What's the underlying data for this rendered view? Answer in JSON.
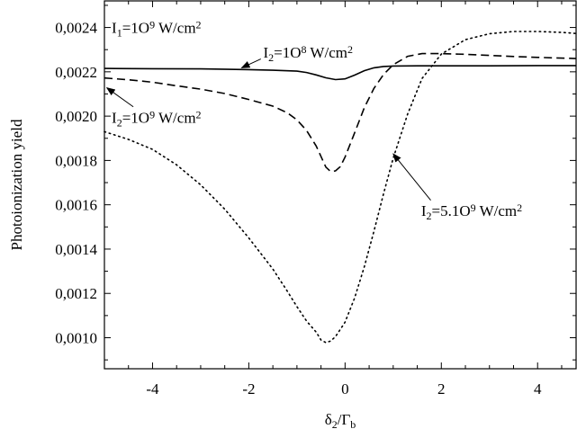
{
  "chart_data": {
    "type": "line",
    "xlabel": "δ2/Γb",
    "ylabel": "Photoionization yield",
    "xlim": [
      -5,
      4.8
    ],
    "ylim": [
      0.00086,
      0.00252
    ],
    "x_ticks": [
      -4,
      -2,
      0,
      2,
      4
    ],
    "x_tick_labels": [
      "-4",
      "-2",
      "0",
      "2",
      "4"
    ],
    "y_ticks": [
      0.001,
      0.0012,
      0.0014,
      0.0016,
      0.0018,
      0.002,
      0.0022,
      0.0024
    ],
    "y_tick_labels": [
      "0,0010",
      "0,0012",
      "0,0014",
      "0,0016",
      "0,0018",
      "0,0020",
      "0,0022",
      "0,0024"
    ],
    "grid": false,
    "series": [
      {
        "label": "I2=1O8 W/cm2",
        "style": "solid",
        "x": [
          -5,
          -4,
          -3,
          -2,
          -1.5,
          -1,
          -0.8,
          -0.6,
          -0.4,
          -0.2,
          0,
          0.2,
          0.4,
          0.6,
          0.8,
          1,
          1.5,
          2,
          3,
          4,
          4.8
        ],
        "y": [
          0.002215,
          0.002214,
          0.002213,
          0.00221,
          0.002207,
          0.002203,
          0.002197,
          0.002186,
          0.002173,
          0.002165,
          0.002168,
          0.002185,
          0.002205,
          0.002218,
          0.002224,
          0.002226,
          0.002227,
          0.002227,
          0.002227,
          0.002228,
          0.002228
        ]
      },
      {
        "label": "I2=1O9 W/cm2",
        "style": "dashed",
        "x": [
          -5,
          -4.5,
          -4,
          -3.5,
          -3,
          -2.5,
          -2,
          -1.5,
          -1.2,
          -1,
          -0.8,
          -0.6,
          -0.4,
          -0.3,
          -0.2,
          -0.1,
          0,
          0.2,
          0.4,
          0.6,
          0.8,
          1,
          1.3,
          1.6,
          2,
          2.5,
          3,
          3.5,
          4,
          4.8
        ],
        "y": [
          0.002172,
          0.002164,
          0.002153,
          0.002137,
          0.002122,
          0.002102,
          0.002075,
          0.002045,
          0.002015,
          0.001983,
          0.001935,
          0.001865,
          0.00177,
          0.00175,
          0.001753,
          0.001772,
          0.001815,
          0.001925,
          0.002038,
          0.002125,
          0.002188,
          0.002232,
          0.00227,
          0.002282,
          0.002282,
          0.002279,
          0.002274,
          0.002269,
          0.002265,
          0.00226
        ]
      },
      {
        "label": "I2=5.1O9 W/cm2",
        "style": "dotted",
        "x": [
          -5,
          -4.5,
          -4,
          -3.5,
          -3,
          -2.5,
          -2,
          -1.5,
          -1.2,
          -1,
          -0.8,
          -0.6,
          -0.5,
          -0.4,
          -0.3,
          -0.2,
          0,
          0.2,
          0.4,
          0.6,
          0.8,
          1,
          1.3,
          1.6,
          2,
          2.5,
          3,
          3.5,
          4,
          4.5,
          4.8
        ],
        "y": [
          0.00193,
          0.001895,
          0.00185,
          0.00178,
          0.00169,
          0.00158,
          0.00145,
          0.00131,
          0.00121,
          0.00114,
          0.001075,
          0.001025,
          0.00099,
          0.000978,
          0.000985,
          0.001005,
          0.00107,
          0.00118,
          0.00132,
          0.00148,
          0.00165,
          0.00181,
          0.00201,
          0.00217,
          0.00228,
          0.002345,
          0.002372,
          0.002382,
          0.002382,
          0.002378,
          0.002373
        ]
      }
    ],
    "annotations": [
      {
        "id": "ann-top-left",
        "parts": [
          [
            "I",
            "normal"
          ],
          [
            "1",
            "sub"
          ],
          [
            "=1O",
            "normal"
          ],
          [
            "9",
            "sup"
          ],
          [
            " W/cm",
            "normal"
          ],
          [
            "2",
            "sup"
          ]
        ],
        "x": -4.85,
        "y": 0.002375,
        "arrow": false
      },
      {
        "id": "ann-solid",
        "parts": [
          [
            "I",
            "normal"
          ],
          [
            "2",
            "sub"
          ],
          [
            "=1O",
            "normal"
          ],
          [
            "8",
            "sup"
          ],
          [
            " W/cm",
            "normal"
          ],
          [
            "2",
            "sup"
          ]
        ],
        "x": -1.7,
        "y": 0.002264,
        "arrow": true,
        "arrow_from": [
          -1.75,
          0.002258
        ],
        "arrow_to": [
          -2.15,
          0.002218
        ]
      },
      {
        "id": "ann-dashed",
        "parts": [
          [
            "I",
            "normal"
          ],
          [
            "2",
            "sub"
          ],
          [
            "=1O",
            "normal"
          ],
          [
            "9",
            "sup"
          ],
          [
            " W/cm",
            "normal"
          ],
          [
            "2",
            "sup"
          ]
        ],
        "x": -4.85,
        "y": 0.00197,
        "arrow": true,
        "arrow_from": [
          -4.4,
          0.002042
        ],
        "arrow_to": [
          -4.95,
          0.002128
        ]
      },
      {
        "id": "ann-dotted",
        "parts": [
          [
            "I",
            "normal"
          ],
          [
            "2",
            "sub"
          ],
          [
            "=5.1O",
            "normal"
          ],
          [
            "9",
            "sup"
          ],
          [
            " W/cm",
            "normal"
          ],
          [
            "2",
            "sup"
          ]
        ],
        "x": 1.58,
        "y": 0.00155,
        "arrow": true,
        "arrow_from": [
          1.78,
          0.00162
        ],
        "arrow_to": [
          1.0,
          0.00183
        ]
      }
    ]
  }
}
